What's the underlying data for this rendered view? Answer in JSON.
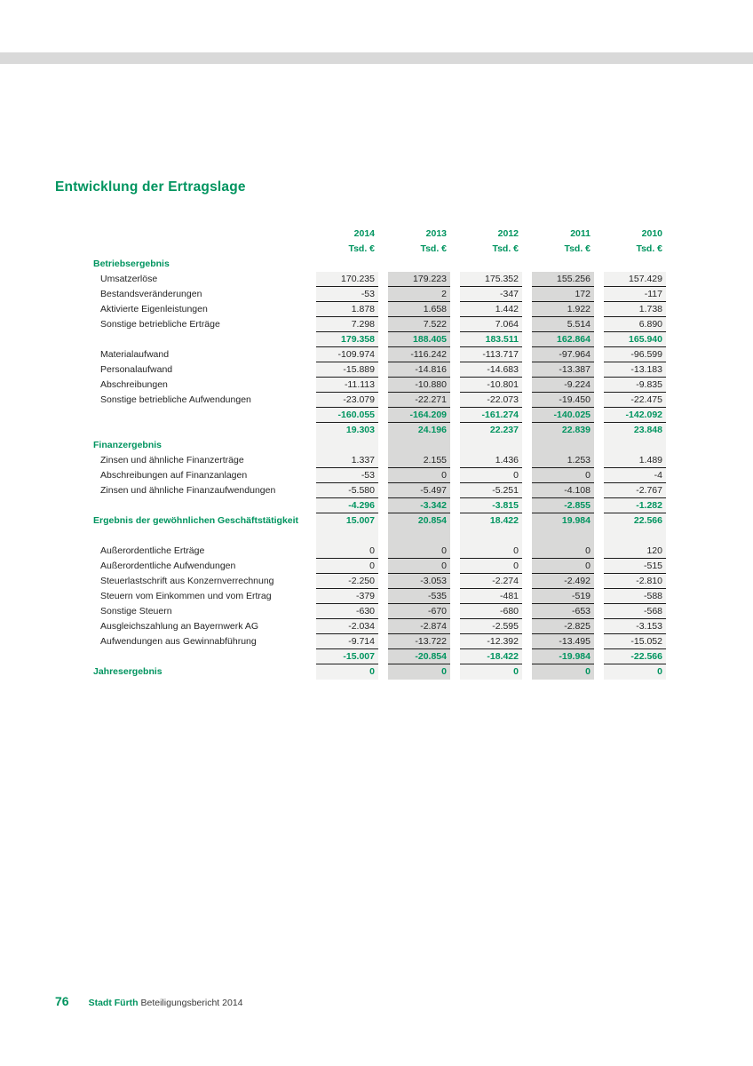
{
  "page_title": "Entwicklung der Ertragslage",
  "colors": {
    "accent_green": "#00945f",
    "column_band_light": "#f2f2f1",
    "column_band_dark": "#d9d9d8",
    "top_bar_gray": "#d9d9d9",
    "cell_border": "#1c1c1c"
  },
  "table": {
    "years": [
      "2014",
      "2013",
      "2012",
      "2011",
      "2010"
    ],
    "unit_label": "Tsd. €",
    "column_shading": [
      "light",
      "dark",
      "light",
      "dark",
      "light"
    ],
    "rows": [
      {
        "type": "section",
        "label": "Betriebsergebnis",
        "values": [
          "",
          "",
          "",
          "",
          ""
        ]
      },
      {
        "type": "item",
        "label": "Umsatzerlöse",
        "values": [
          "170.235",
          "179.223",
          "175.352",
          "155.256",
          "157.429"
        ]
      },
      {
        "type": "item",
        "label": "Bestandsveränderungen",
        "values": [
          "-53",
          "2",
          "-347",
          "172",
          "-117"
        ]
      },
      {
        "type": "item",
        "label": "Aktivierte Eigenleistungen",
        "values": [
          "1.878",
          "1.658",
          "1.442",
          "1.922",
          "1.738"
        ]
      },
      {
        "type": "item",
        "label": "Sonstige betriebliche Erträge",
        "values": [
          "7.298",
          "7.522",
          "7.064",
          "5.514",
          "6.890"
        ]
      },
      {
        "type": "subtotal",
        "label": "",
        "values": [
          "179.358",
          "188.405",
          "183.511",
          "162.864",
          "165.940"
        ]
      },
      {
        "type": "item",
        "label": "Materialaufwand",
        "values": [
          "-109.974",
          "-116.242",
          "-113.717",
          "-97.964",
          "-96.599"
        ]
      },
      {
        "type": "item",
        "label": "Personalaufwand",
        "values": [
          "-15.889",
          "-14.816",
          "-14.683",
          "-13.387",
          "-13.183"
        ]
      },
      {
        "type": "item",
        "label": "Abschreibungen",
        "values": [
          "-11.113",
          "-10.880",
          "-10.801",
          "-9.224",
          "-9.835"
        ]
      },
      {
        "type": "item",
        "label": "Sonstige betriebliche Aufwendungen",
        "values": [
          "-23.079",
          "-22.271",
          "-22.073",
          "-19.450",
          "-22.475"
        ]
      },
      {
        "type": "subtotal",
        "label": "",
        "values": [
          "-160.055",
          "-164.209",
          "-161.274",
          "-140.025",
          "-142.092"
        ]
      },
      {
        "type": "result",
        "label": "",
        "values": [
          "19.303",
          "24.196",
          "22.237",
          "22.839",
          "23.848"
        ]
      },
      {
        "type": "section",
        "label": "Finanzergebnis",
        "values": [
          "",
          "",
          "",
          "",
          ""
        ]
      },
      {
        "type": "item",
        "label": "Zinsen und ähnliche Finanzerträge",
        "values": [
          "1.337",
          "2.155",
          "1.436",
          "1.253",
          "1.489"
        ]
      },
      {
        "type": "item",
        "label": "Abschreibungen auf Finanzanlagen",
        "values": [
          "-53",
          "0",
          "0",
          "0",
          "-4"
        ]
      },
      {
        "type": "item",
        "label": "Zinsen und ähnliche Finanzaufwendungen",
        "values": [
          "-5.580",
          "-5.497",
          "-5.251",
          "-4.108",
          "-2.767"
        ]
      },
      {
        "type": "subtotal",
        "label": "",
        "values": [
          "-4.296",
          "-3.342",
          "-3.815",
          "-2.855",
          "-1.282"
        ]
      },
      {
        "type": "section-result",
        "label": "Ergebnis der gewöhnlichen Geschäftstätigkeit",
        "values": [
          "15.007",
          "20.854",
          "18.422",
          "19.984",
          "22.566"
        ]
      },
      {
        "type": "gap",
        "label": "",
        "values": [
          "",
          "",
          "",
          "",
          ""
        ]
      },
      {
        "type": "item",
        "label": "Außerordentliche Erträge",
        "values": [
          "0",
          "0",
          "0",
          "0",
          "120"
        ]
      },
      {
        "type": "item",
        "label": "Außerordentliche Aufwendungen",
        "values": [
          "0",
          "0",
          "0",
          "0",
          "-515"
        ]
      },
      {
        "type": "item",
        "label": "Steuerlastschrift aus Konzernverrechnung",
        "values": [
          "-2.250",
          "-3.053",
          "-2.274",
          "-2.492",
          "-2.810"
        ]
      },
      {
        "type": "item",
        "label": "Steuern vom Einkommen und vom Ertrag",
        "values": [
          "-379",
          "-535",
          "-481",
          "-519",
          "-588"
        ]
      },
      {
        "type": "item",
        "label": "Sonstige Steuern",
        "values": [
          "-630",
          "-670",
          "-680",
          "-653",
          "-568"
        ]
      },
      {
        "type": "item",
        "label": "Ausgleichszahlung an Bayernwerk AG",
        "values": [
          "-2.034",
          "-2.874",
          "-2.595",
          "-2.825",
          "-3.153"
        ]
      },
      {
        "type": "item",
        "label": "Aufwendungen aus Gewinnabführung",
        "values": [
          "-9.714",
          "-13.722",
          "-12.392",
          "-13.495",
          "-15.052"
        ]
      },
      {
        "type": "subtotal",
        "label": "",
        "values": [
          "-15.007",
          "-20.854",
          "-18.422",
          "-19.984",
          "-22.566"
        ]
      },
      {
        "type": "final",
        "label": "Jahresergebnis",
        "values": [
          "0",
          "0",
          "0",
          "0",
          "0"
        ]
      }
    ]
  },
  "footer": {
    "page_number": "76",
    "brand": "Stadt Fürth",
    "report_title": "Beteiligungsbericht 2014"
  }
}
